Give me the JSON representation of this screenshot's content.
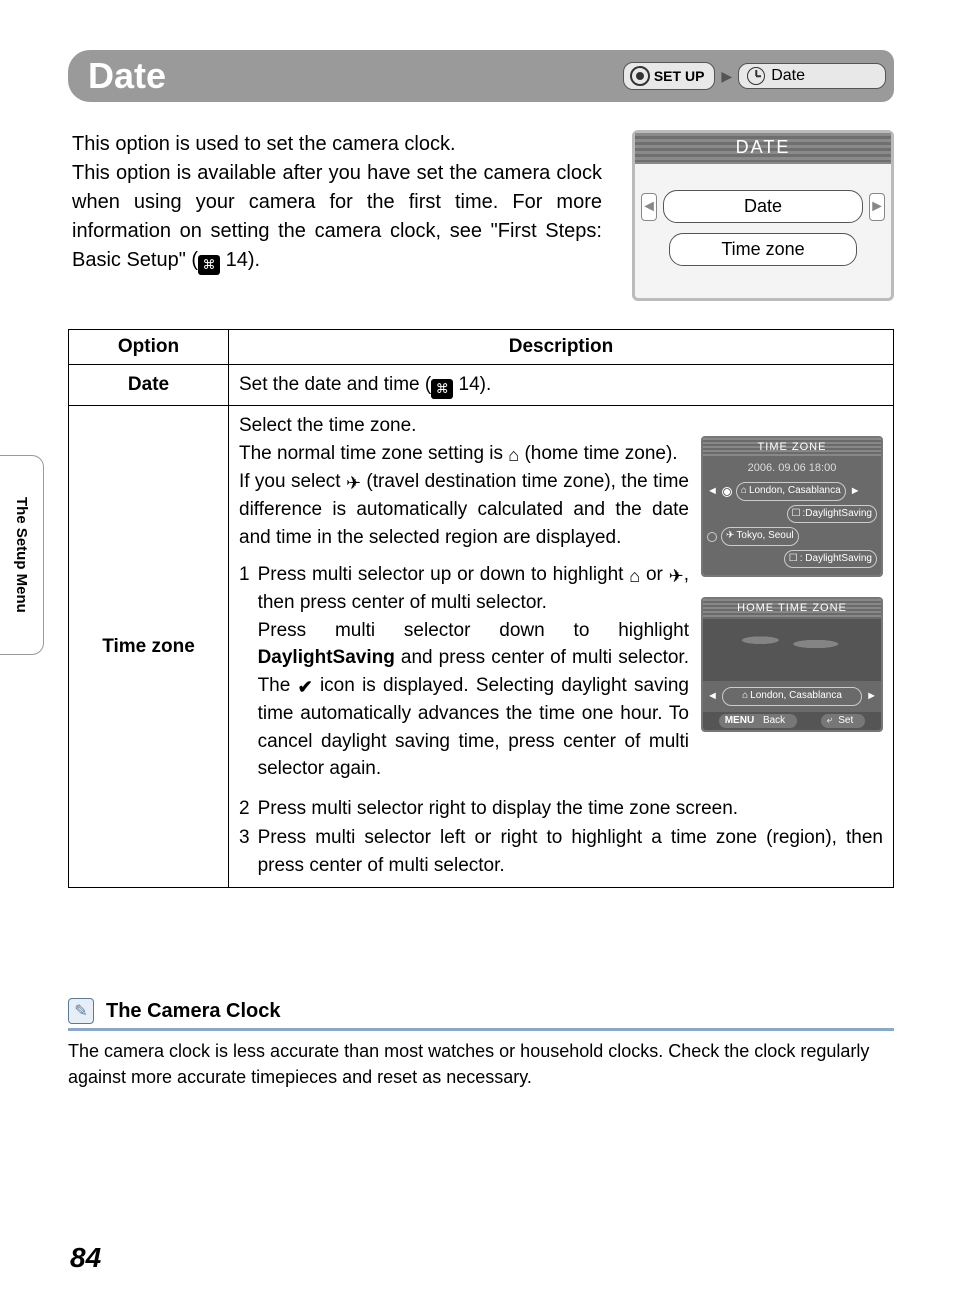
{
  "side_tab": "The Setup Menu",
  "header": {
    "title": "Date",
    "crumb_setup": "SET UP",
    "crumb_date": "Date"
  },
  "intro": {
    "line1": "This option is used to set the camera clock.",
    "line2a": "This option is available after you have set the camera clock when using your camera for the first time. For more information on setting the camera clock, see \"First Steps: Basic Setup\" (",
    "ref_icon": "⌘",
    "ref_page": " 14)."
  },
  "camera_menu": {
    "title": "DATE",
    "item1": "Date",
    "item2": "Time zone"
  },
  "table": {
    "head_option": "Option",
    "head_desc": "Description",
    "row1": {
      "option": "Date",
      "desc_a": "Set the date and time (",
      "desc_b": " 14)."
    },
    "row2": {
      "option": "Time zone",
      "para1a": "Select the time zone.",
      "para1b_a": "The normal time zone setting is ",
      "para1b_b": " (home time zone).",
      "para1c_a": "If you select ",
      "para1c_b": " (travel destination time zone), the time difference is automatically calculated and the date and time in the selected region are displayed.",
      "step1_a": "Press multi selector up or down to highlight ",
      "step1_b": " or ",
      "step1_c": ", then press center of multi selector.",
      "step1_d": "Press multi selector down to highlight ",
      "step1_bold": "DaylightSaving",
      "step1_e": " and press center of multi selector. The ",
      "step1_f": " icon is displayed. Selecting daylight saving time automatically advances the time one hour. To cancel daylight saving time, press center of multi selector again.",
      "step2": "Press multi selector right to display the time zone screen.",
      "step3": "Press multi selector left or right to highlight a time zone (region), then press center of multi selector."
    },
    "mini1": {
      "title": "TIME ZONE",
      "date": "2006. 09.06  18:00",
      "home": "London, Casablanca",
      "ds1": ":DaylightSaving",
      "away": "Tokyo, Seoul",
      "ds2": ": DaylightSaving"
    },
    "mini2": {
      "title": "HOME TIME ZONE",
      "loc": "London, Casablanca",
      "back": "Back",
      "set": "Set",
      "menu": "MENU"
    }
  },
  "note": {
    "title": "The Camera Clock",
    "body": "The camera clock is less accurate than most watches or household clocks. Check the clock regularly against more accurate timepieces and reset as necessary."
  },
  "page_number": "84",
  "colors": {
    "header_bg": "#9a9a9a",
    "note_rule": "#8aa8c8"
  }
}
